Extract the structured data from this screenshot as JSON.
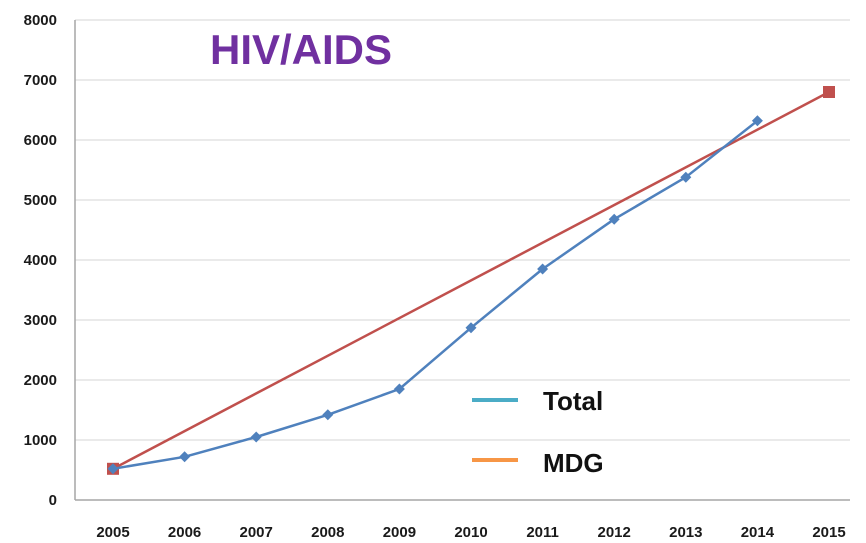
{
  "chart_data": {
    "type": "line",
    "title": "HIV/AIDS",
    "x": [
      2005,
      2006,
      2007,
      2008,
      2009,
      2010,
      2011,
      2012,
      2013,
      2014,
      2015
    ],
    "ylim": [
      0,
      8000
    ],
    "yticks": [
      0,
      1000,
      2000,
      3000,
      4000,
      5000,
      6000,
      7000,
      8000
    ],
    "xlabel": "",
    "ylabel": "",
    "grid": true,
    "legend_placement": "bottom-center",
    "series": [
      {
        "name": "Total",
        "color": "#4f81bd",
        "legend_color": "#4bacc6",
        "marker": "diamond",
        "points": [
          {
            "x": 2005,
            "y": 520
          },
          {
            "x": 2006,
            "y": 720
          },
          {
            "x": 2007,
            "y": 1050
          },
          {
            "x": 2008,
            "y": 1420
          },
          {
            "x": 2009,
            "y": 1850
          },
          {
            "x": 2010,
            "y": 2870
          },
          {
            "x": 2011,
            "y": 3850
          },
          {
            "x": 2012,
            "y": 4680
          },
          {
            "x": 2013,
            "y": 5380
          },
          {
            "x": 2014,
            "y": 6320
          }
        ]
      },
      {
        "name": "MDG",
        "color": "#c0504d",
        "legend_color": "#f79646",
        "marker": "square",
        "points": [
          {
            "x": 2005,
            "y": 520
          },
          {
            "x": 2015,
            "y": 6800
          }
        ]
      }
    ],
    "title_color": "#7030a0",
    "grid_color": "#d4d4d4",
    "axis_color": "#a6a6a6"
  }
}
